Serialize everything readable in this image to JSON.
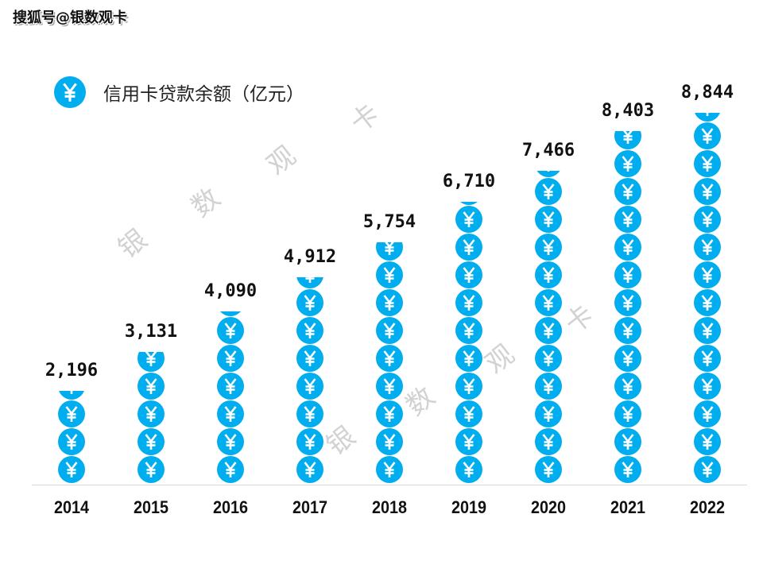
{
  "source_label": "搜狐号@银数观卡",
  "legend": {
    "icon": "yuan-coin-icon",
    "label": "信用卡贷款余额（亿元）"
  },
  "colors": {
    "coin": "#00AEEF",
    "coin_glyph": "#ffffff",
    "axis": "#d9d9d9",
    "watermark": "#d2d2d2"
  },
  "watermark": [
    "银",
    "数",
    "观",
    "卡"
  ],
  "chart_data": {
    "type": "bar",
    "subtype": "pictograph",
    "title": "信用卡贷款余额（亿元）",
    "xlabel": "",
    "ylabel": "",
    "categories": [
      "2014",
      "2015",
      "2016",
      "2017",
      "2018",
      "2019",
      "2020",
      "2021",
      "2022"
    ],
    "values": [
      2196,
      3131,
      4090,
      4912,
      5754,
      6710,
      7466,
      8403,
      8844
    ],
    "value_labels": [
      "2,196",
      "3,131",
      "4,090",
      "4,912",
      "5,754",
      "6,710",
      "7,466",
      "8,403",
      "8,844"
    ],
    "series": [
      {
        "name": "信用卡贷款余额（亿元）",
        "values": [
          2196,
          3131,
          4090,
          4912,
          5754,
          6710,
          7466,
          8403,
          8844
        ]
      }
    ],
    "grid": false,
    "legend_position": "top-left",
    "ylim": [
      0,
      9000
    ]
  }
}
